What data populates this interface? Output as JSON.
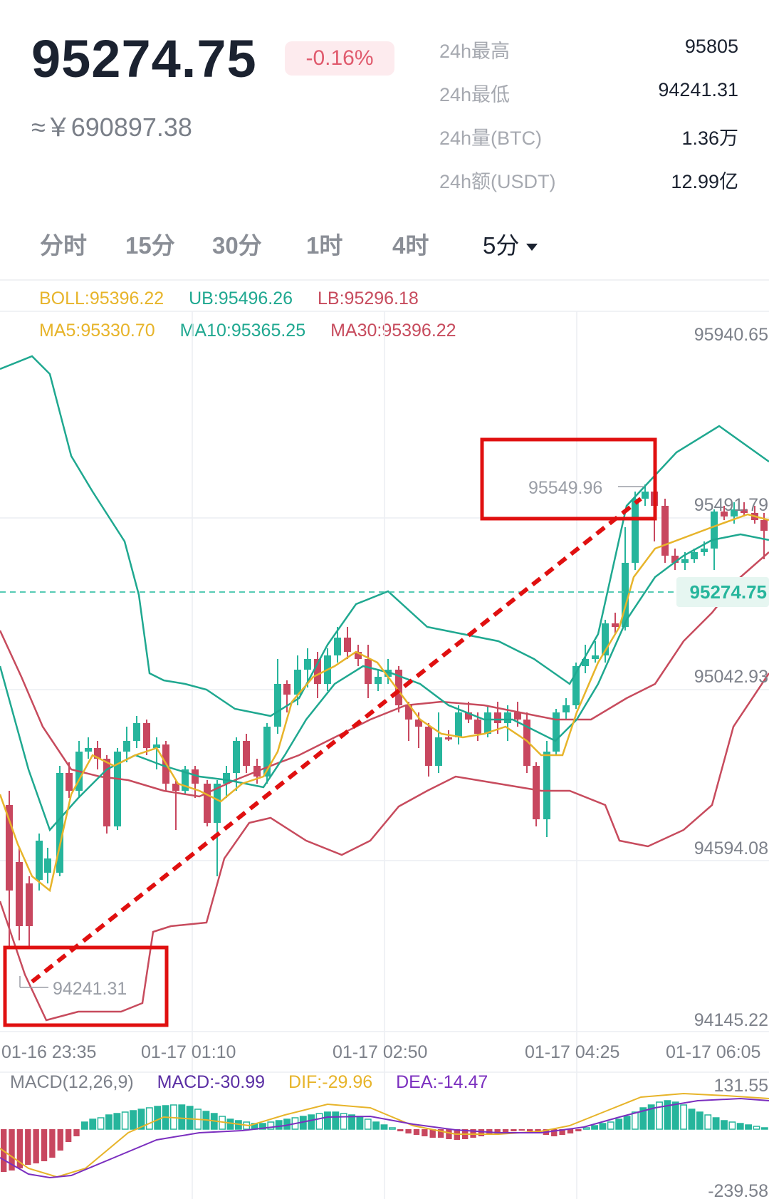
{
  "header": {
    "price": "95274.75",
    "change_pct": "-0.16%",
    "cny_price": "≈￥690897.38",
    "stats": [
      {
        "label": "24h最高",
        "value": "95805"
      },
      {
        "label": "24h最低",
        "value": "94241.31"
      },
      {
        "label": "24h量(BTC)",
        "value": "1.36万"
      },
      {
        "label": "24h额(USDT)",
        "value": "12.99亿"
      }
    ]
  },
  "tabs": [
    {
      "label": "分时"
    },
    {
      "label": "15分"
    },
    {
      "label": "30分"
    },
    {
      "label": "1时"
    },
    {
      "label": "4时"
    },
    {
      "label": "5分",
      "active": true
    }
  ],
  "indicators": {
    "boll": "BOLL:95396.22",
    "ub": "UB:95496.26",
    "lb": "LB:95296.18",
    "ma5": "MA5:95330.70",
    "ma10": "MA10:95365.25",
    "ma30": "MA30:95396.22"
  },
  "chart": {
    "price_axis": [
      "95940.65",
      "95491.79",
      "95042.93",
      "94594.08",
      "94145.22"
    ],
    "current_price_tag": "95274.75",
    "high_marker": "95549.96",
    "low_marker": "94241.31",
    "time_axis": [
      "01-16 23:35",
      "01-17 01:10",
      "01-17 02:50",
      "01-17 04:25",
      "01-17 06:05"
    ]
  },
  "macd": {
    "title": "MACD(12,26,9)",
    "macd": "MACD:-30.99",
    "dif": "DIF:-29.96",
    "dea": "DEA:-14.47",
    "axis_top": "131.55",
    "axis_bottom": "-239.58"
  },
  "colors": {
    "up": "#26b59c",
    "down": "#c8475f",
    "boll": "#e7b42a",
    "ub": "#1fa890",
    "lb": "#c74b5d",
    "ma5": "#e7b42a",
    "ma10": "#1fa890",
    "ma30": "#c74b5d",
    "dif": "#e7b42a",
    "dea": "#7b2fbf",
    "macd_label": "#5b2fa4",
    "annotation": "#e01010"
  }
}
